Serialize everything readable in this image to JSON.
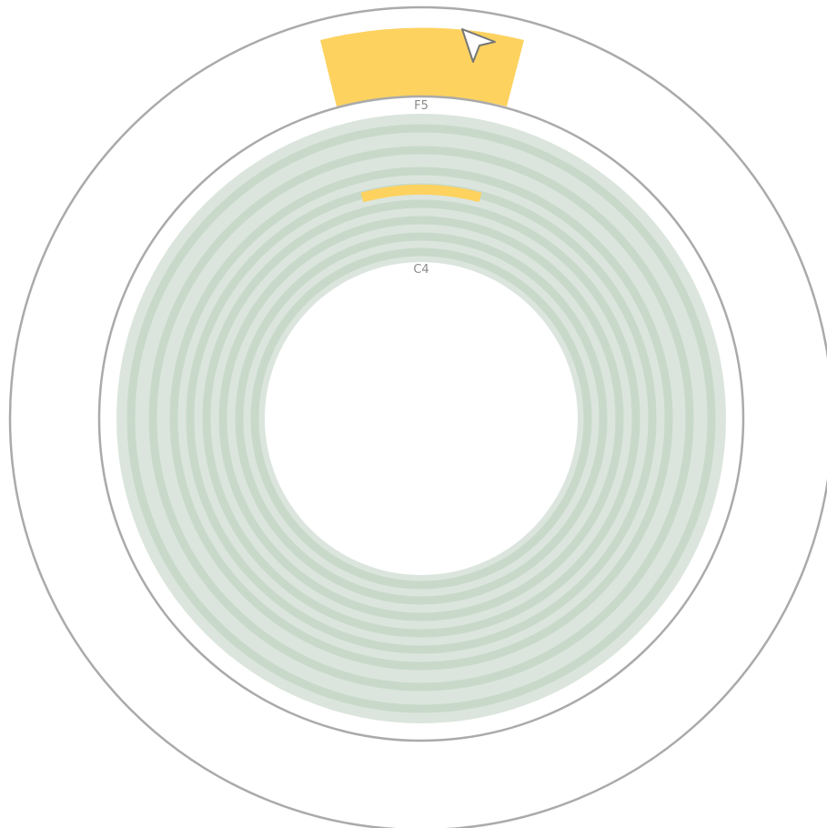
{
  "labels": {
    "outer_note": "F5",
    "inner_note": "C4"
  },
  "colors": {
    "background": "#ffffff",
    "outline": "#aaaaaa",
    "track_base": "#dbe5dd",
    "track_groove": "#c8d9c9",
    "highlight": "#fdd25f",
    "cursor_fill": "#ffffff",
    "cursor_stroke": "#777777"
  },
  "icons": {
    "cursor": "pointer-arrow-icon"
  }
}
